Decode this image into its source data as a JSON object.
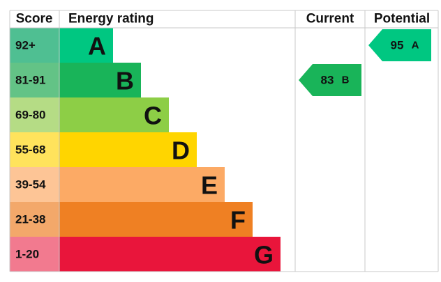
{
  "header": {
    "score": "Score",
    "rating": "Energy rating",
    "current": "Current",
    "potential": "Potential"
  },
  "bands": [
    {
      "score": "92+",
      "letter": "A"
    },
    {
      "score": "81-91",
      "letter": "B"
    },
    {
      "score": "69-80",
      "letter": "C"
    },
    {
      "score": "55-68",
      "letter": "D"
    },
    {
      "score": "39-54",
      "letter": "E"
    },
    {
      "score": "21-38",
      "letter": "F"
    },
    {
      "score": "1-20",
      "letter": "G"
    }
  ],
  "current": {
    "value": 83,
    "letter": "B"
  },
  "potential": {
    "value": 95,
    "letter": "A"
  }
}
